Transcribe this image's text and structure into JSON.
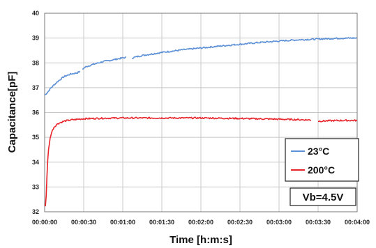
{
  "chart_data": {
    "type": "line",
    "xlabel": "Time [h:m:s]",
    "ylabel": "Capacitance[pF]",
    "xlim_seconds": [
      0,
      240
    ],
    "ylim": [
      32,
      40
    ],
    "y_ticks": [
      32,
      33,
      34,
      35,
      36,
      37,
      38,
      39,
      40
    ],
    "x_ticks": [
      "00:00:00",
      "00:00:30",
      "00:01:00",
      "00:01:30",
      "00:02:00",
      "00:02:30",
      "00:03:00",
      "00:03:30",
      "00:04:00"
    ],
    "grid": true,
    "legend_position": "bottom-right",
    "annotation": "Vb=4.5V",
    "series": [
      {
        "name": "23°C",
        "color": "#5b8fd6",
        "segments": [
          {
            "x": [
              0,
              2,
              5,
              10,
              15,
              20,
              25,
              27
            ],
            "y": [
              36.7,
              36.8,
              37.0,
              37.25,
              37.45,
              37.55,
              37.6,
              37.65
            ]
          },
          {
            "x": [
              29,
              32,
              36,
              40,
              45,
              50,
              55,
              60,
              63
            ],
            "y": [
              37.75,
              37.85,
              37.92,
              37.98,
              38.05,
              38.1,
              38.15,
              38.2,
              38.22
            ]
          },
          {
            "x": [
              67,
              75,
              90,
              105,
              120,
              135,
              150,
              165,
              180,
              195,
              210,
              225,
              240
            ],
            "y": [
              38.2,
              38.3,
              38.42,
              38.52,
              38.6,
              38.68,
              38.75,
              38.82,
              38.88,
              38.93,
              38.96,
              38.99,
              39.0
            ]
          }
        ]
      },
      {
        "name": "200°C",
        "color": "#e8242b",
        "segments": [
          {
            "x": [
              0,
              0.5,
              1,
              1.5,
              2,
              3,
              4,
              5,
              7,
              10,
              15,
              20,
              30,
              45,
              60,
              90,
              120,
              150,
              180,
              205
            ],
            "y": [
              32.3,
              32.2,
              32.4,
              33.0,
              33.8,
              34.5,
              34.9,
              35.15,
              35.4,
              35.55,
              35.65,
              35.7,
              35.75,
              35.77,
              35.78,
              35.78,
              35.78,
              35.76,
              35.73,
              35.7
            ]
          },
          {
            "x": [
              210,
              220,
              230,
              240
            ],
            "y": [
              35.65,
              35.67,
              35.68,
              35.68
            ]
          }
        ]
      }
    ]
  }
}
